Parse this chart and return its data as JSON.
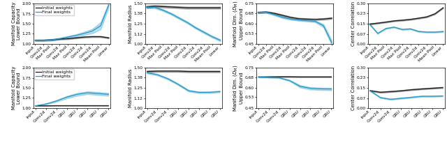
{
  "cnn_xticks": [
    "Input",
    "Conv2d",
    "Max Pool",
    "Conv2d",
    "Max Pool",
    "Conv2d",
    "Conv2d",
    "Conv2d",
    "Mean Pool",
    "Linear"
  ],
  "rnn_xticks": [
    "Input",
    "Conv2d",
    "Conv2d",
    "GRU",
    "GRU",
    "GRU",
    "GRU",
    "GRU"
  ],
  "cnn_cap_init_mean": [
    1.09,
    1.09,
    1.1,
    1.12,
    1.13,
    1.15,
    1.17,
    1.18,
    1.18,
    1.15
  ],
  "cnn_cap_init_std": [
    0.015,
    0.015,
    0.015,
    0.015,
    0.015,
    0.015,
    0.015,
    0.015,
    0.015,
    0.015
  ],
  "cnn_cap_final_mean": [
    1.09,
    1.09,
    1.1,
    1.13,
    1.17,
    1.21,
    1.26,
    1.32,
    1.45,
    1.97
  ],
  "cnn_cap_final_std": [
    0.02,
    0.02,
    0.02,
    0.02,
    0.025,
    0.03,
    0.04,
    0.055,
    0.09,
    0.06
  ],
  "cnn_rad_init_mean": [
    1.46,
    1.47,
    1.465,
    1.46,
    1.455,
    1.45,
    1.45,
    1.45,
    1.45,
    1.45
  ],
  "cnn_rad_init_std": [
    0.015,
    0.012,
    0.012,
    0.012,
    0.012,
    0.012,
    0.012,
    0.012,
    0.012,
    0.012
  ],
  "cnn_rad_final_mean": [
    1.46,
    1.455,
    1.42,
    1.375,
    1.32,
    1.265,
    1.2,
    1.145,
    1.09,
    1.045
  ],
  "cnn_rad_final_std": [
    0.015,
    0.012,
    0.012,
    0.012,
    0.012,
    0.012,
    0.012,
    0.012,
    0.012,
    0.012
  ],
  "cnn_dim_init_mean": [
    0.685,
    0.688,
    0.678,
    0.663,
    0.648,
    0.638,
    0.635,
    0.633,
    0.636,
    0.642
  ],
  "cnn_dim_init_std": [
    0.006,
    0.006,
    0.006,
    0.006,
    0.006,
    0.006,
    0.006,
    0.006,
    0.006,
    0.006
  ],
  "cnn_dim_final_mean": [
    0.685,
    0.688,
    0.668,
    0.648,
    0.635,
    0.628,
    0.623,
    0.618,
    0.585,
    0.46
  ],
  "cnn_dim_final_std": [
    0.006,
    0.006,
    0.006,
    0.006,
    0.006,
    0.006,
    0.006,
    0.007,
    0.012,
    0.018
  ],
  "cnn_cor_init_mean": [
    0.148,
    0.155,
    0.163,
    0.172,
    0.177,
    0.183,
    0.192,
    0.202,
    0.225,
    0.27
  ],
  "cnn_cor_init_std": [
    0.004,
    0.004,
    0.004,
    0.004,
    0.004,
    0.004,
    0.004,
    0.004,
    0.004,
    0.004
  ],
  "cnn_cor_final_mean": [
    0.148,
    0.078,
    0.115,
    0.125,
    0.108,
    0.112,
    0.093,
    0.088,
    0.088,
    0.092
  ],
  "cnn_cor_final_std": [
    0.004,
    0.004,
    0.004,
    0.004,
    0.004,
    0.004,
    0.004,
    0.004,
    0.004,
    0.004
  ],
  "rnn_cap_init_mean": [
    1.055,
    1.055,
    1.058,
    1.058,
    1.058,
    1.058,
    1.058,
    1.058
  ],
  "rnn_cap_init_std": [
    0.004,
    0.004,
    0.004,
    0.004,
    0.004,
    0.004,
    0.004,
    0.004
  ],
  "rnn_cap_final_mean": [
    1.055,
    1.1,
    1.175,
    1.27,
    1.34,
    1.38,
    1.36,
    1.34
  ],
  "rnn_cap_final_std": [
    0.008,
    0.012,
    0.02,
    0.03,
    0.035,
    0.035,
    0.035,
    0.035
  ],
  "rnn_rad_init_mean": [
    1.455,
    1.46,
    1.46,
    1.46,
    1.455,
    1.455,
    1.455,
    1.455
  ],
  "rnn_rad_init_std": [
    0.012,
    0.01,
    0.01,
    0.01,
    0.01,
    0.01,
    0.01,
    0.01
  ],
  "rnn_rad_final_mean": [
    1.44,
    1.415,
    1.365,
    1.295,
    1.215,
    1.195,
    1.195,
    1.205
  ],
  "rnn_rad_final_std": [
    0.01,
    0.01,
    0.01,
    0.01,
    0.01,
    0.01,
    0.01,
    0.01
  ],
  "rnn_dim_init_mean": [
    0.682,
    0.683,
    0.684,
    0.684,
    0.683,
    0.683,
    0.683,
    0.683
  ],
  "rnn_dim_init_std": [
    0.003,
    0.003,
    0.003,
    0.003,
    0.003,
    0.003,
    0.003,
    0.003
  ],
  "rnn_dim_final_mean": [
    0.682,
    0.679,
    0.676,
    0.655,
    0.612,
    0.597,
    0.593,
    0.592
  ],
  "rnn_dim_final_std": [
    0.003,
    0.003,
    0.003,
    0.005,
    0.009,
    0.009,
    0.009,
    0.009
  ],
  "rnn_cor_init_mean": [
    0.13,
    0.118,
    0.123,
    0.129,
    0.137,
    0.143,
    0.148,
    0.153
  ],
  "rnn_cor_init_std": [
    0.004,
    0.004,
    0.004,
    0.004,
    0.004,
    0.004,
    0.004,
    0.004
  ],
  "rnn_cor_final_mean": [
    0.13,
    0.078,
    0.065,
    0.073,
    0.08,
    0.088,
    0.088,
    0.09
  ],
  "rnn_cor_final_std": [
    0.004,
    0.004,
    0.004,
    0.004,
    0.004,
    0.004,
    0.004,
    0.004
  ],
  "color_init": "#1a1a1a",
  "color_final": "#2196c8",
  "alpha_band": 0.3,
  "ylim_cap": [
    1.0,
    2.0
  ],
  "ylim_rad": [
    1.0,
    1.5
  ],
  "ylim_dim": [
    0.45,
    0.75
  ],
  "ylim_cor": [
    0.0,
    0.3
  ],
  "yticks_cap": [
    1.0,
    1.25,
    1.5,
    1.75,
    2.0
  ],
  "yticks_rad": [
    1.0,
    1.12,
    1.25,
    1.38,
    1.5
  ],
  "yticks_dim": [
    0.45,
    0.53,
    0.6,
    0.68,
    0.75
  ],
  "yticks_cor": [
    0.0,
    0.07,
    0.15,
    0.23,
    0.3
  ],
  "ylabel_cap": "Manifold Capacity\nLower Bound",
  "ylabel_rad": "Manifold Radius",
  "ylabel_dim": "Manifold Dim. ($D_M$)\nUpper Bound",
  "ylabel_cor": "Center Correlation",
  "legend_labels": [
    "Initial weights",
    "Final weights"
  ],
  "tick_fontsize": 4.2,
  "label_fontsize": 5.0,
  "legend_fontsize": 4.5
}
